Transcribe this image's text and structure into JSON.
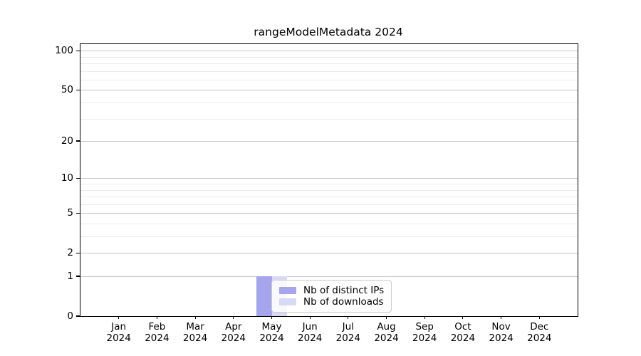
{
  "chart_data": {
    "type": "bar",
    "title": "rangeModelMetadata 2024",
    "x_categories": [
      "Jan",
      "Feb",
      "Mar",
      "Apr",
      "May",
      "Jun",
      "Jul",
      "Aug",
      "Sep",
      "Oct",
      "Nov",
      "Dec"
    ],
    "x_year_label": "2024",
    "series": [
      {
        "name": "Nb of distinct IPs",
        "color": "#a5a5ee",
        "values": [
          0,
          0,
          0,
          0,
          1,
          0,
          0,
          0,
          0,
          0,
          0,
          0
        ]
      },
      {
        "name": "Nb of downloads",
        "color": "#d9d9f6",
        "values": [
          0,
          0,
          0,
          0,
          1,
          0,
          0,
          0,
          0,
          0,
          0,
          0
        ]
      }
    ],
    "xlabel": "",
    "ylabel": "",
    "y_scale": "log10(1+y)",
    "y_major_ticks": [
      0,
      1,
      2,
      5,
      10,
      20,
      50,
      100
    ],
    "y_minor_gridlines": [
      3,
      4,
      6,
      7,
      8,
      9,
      30,
      40,
      60,
      70,
      80,
      90
    ],
    "ylim": [
      0,
      112
    ],
    "grid": "horizontal, major and minor",
    "legend_position": "inside, below center-left",
    "colors": {
      "major_grid": "#c6c6c6",
      "minor_grid": "#ececec",
      "axis": "#000000",
      "background": "#ffffff"
    }
  }
}
